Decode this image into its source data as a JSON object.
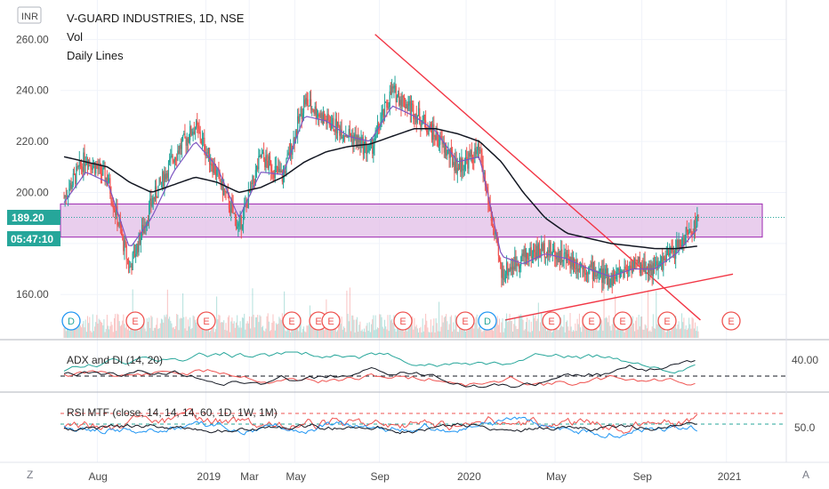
{
  "header": {
    "currency": "INR",
    "symbol_line": "V-GUARD INDUSTRIES, 1D, NSE",
    "studies": [
      "Vol",
      "Daily Lines"
    ]
  },
  "colors": {
    "up": "#26a69a",
    "down": "#ef5350",
    "zone_fill": "#e1bee7",
    "zone_stroke": "#9c27b0",
    "trendline": "#f23645",
    "ma_short": "#7e57c2",
    "ma_long": "#131722",
    "price_tag": "#26a69a"
  },
  "price_tag": {
    "value": "189.20",
    "countdown": "05:47:10"
  },
  "scales": {
    "left_price_ticks": [
      "260.00",
      "240.00",
      "220.00",
      "200.00",
      "160.00"
    ],
    "right_adx_tick": "40.00",
    "right_rsi_tick": "50.0",
    "x_ticks": [
      "Aug",
      "2019",
      "Mar",
      "May",
      "Sep",
      "2020",
      "May",
      "Sep",
      "2021"
    ]
  },
  "events": [
    {
      "label": "D",
      "kind": "dividend"
    },
    {
      "label": "E",
      "kind": "earnings"
    },
    {
      "label": "E",
      "kind": "earnings"
    },
    {
      "label": "E",
      "kind": "earnings"
    },
    {
      "label": "E",
      "kind": "earnings"
    },
    {
      "label": "E",
      "kind": "earnings"
    },
    {
      "label": "E",
      "kind": "earnings"
    },
    {
      "label": "E",
      "kind": "earnings"
    },
    {
      "label": "D",
      "kind": "dividend"
    },
    {
      "label": "E",
      "kind": "earnings"
    },
    {
      "label": "E",
      "kind": "earnings"
    },
    {
      "label": "E",
      "kind": "earnings"
    },
    {
      "label": "E",
      "kind": "earnings"
    },
    {
      "label": "E",
      "kind": "earnings"
    }
  ],
  "indicators": {
    "adx_label": "ADX and DI (14, 20)",
    "rsi_label": "RSI MTF (close, 14, 14, 14, 60, 1D, 1W, 1M)"
  },
  "footer": {
    "left_button": "Z",
    "right_button": "A"
  },
  "chart_data": {
    "type": "candlestick",
    "title": "V-GUARD INDUSTRIES, 1D, NSE",
    "x": [
      "2018-07",
      "2018-08",
      "2018-09",
      "2018-10",
      "2018-11",
      "2018-12",
      "2019-01",
      "2019-02",
      "2019-03",
      "2019-04",
      "2019-05",
      "2019-06",
      "2019-07",
      "2019-08",
      "2019-09",
      "2019-10",
      "2019-11",
      "2019-12",
      "2020-01",
      "2020-02",
      "2020-03",
      "2020-04",
      "2020-05",
      "2020-06",
      "2020-07",
      "2020-08",
      "2020-09",
      "2020-10",
      "2020-11",
      "2020-12"
    ],
    "close": [
      198,
      214,
      205,
      170,
      196,
      214,
      226,
      207,
      186,
      214,
      206,
      236,
      228,
      223,
      216,
      240,
      232,
      222,
      210,
      216,
      168,
      175,
      178,
      174,
      170,
      166,
      172,
      170,
      178,
      189.2
    ],
    "ylim": [
      143,
      265
    ],
    "zone": {
      "low": 182.5,
      "high": 195.5
    },
    "trendlines": [
      {
        "from": [
          "2019-09",
          262
        ],
        "to": [
          "2020-12",
          150
        ]
      },
      {
        "from": [
          "2020-03",
          150
        ],
        "to": [
          "2021-01",
          168
        ]
      }
    ],
    "moving_averages": [
      {
        "values": [
          196,
          208,
          204,
          178,
          190,
          208,
          220,
          210,
          190,
          208,
          207,
          230,
          228,
          222,
          220,
          234,
          230,
          224,
          212,
          214,
          175,
          172,
          176,
          174,
          170,
          167,
          170,
          170,
          176,
          186
        ]
      },
      {
        "values": [
          214,
          212,
          210,
          204,
          200,
          203,
          206,
          204,
          200,
          202,
          206,
          212,
          216,
          218,
          219,
          222,
          225,
          225,
          223,
          220,
          212,
          200,
          190,
          184,
          182,
          180,
          179,
          178,
          178,
          179
        ]
      }
    ],
    "last_price": 189.2
  }
}
